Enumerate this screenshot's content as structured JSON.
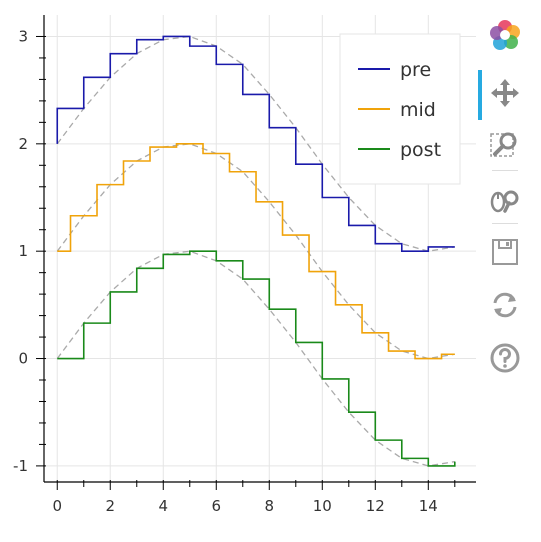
{
  "chart_data": {
    "type": "line",
    "title": "",
    "xlabel": "",
    "ylabel": "",
    "xlim": [
      -0.5,
      15.8
    ],
    "ylim": [
      -1.15,
      3.2
    ],
    "x_ticks": [
      0,
      2,
      4,
      6,
      8,
      10,
      12,
      14
    ],
    "y_ticks": [
      -1,
      0,
      1,
      2,
      3
    ],
    "grid": true,
    "legend_position": "top-right",
    "x": [
      0,
      1,
      2,
      3,
      4,
      5,
      6,
      7,
      8,
      9,
      10,
      11,
      12,
      13,
      14,
      15
    ],
    "series": [
      {
        "name": "pre",
        "offset": 2,
        "step_mode": "before",
        "color": "#1a1aaa",
        "values": [
          2.0,
          2.33,
          2.62,
          2.84,
          2.97,
          3.0,
          2.91,
          2.74,
          2.46,
          2.15,
          1.81,
          1.5,
          1.24,
          1.07,
          1.0,
          1.04
        ]
      },
      {
        "name": "mid",
        "offset": 1,
        "step_mode": "center",
        "color": "#f0a30a",
        "values": [
          1.0,
          1.33,
          1.62,
          1.84,
          1.97,
          2.0,
          1.91,
          1.74,
          1.46,
          1.15,
          0.81,
          0.5,
          0.24,
          0.07,
          0.0,
          0.04
        ]
      },
      {
        "name": "post",
        "offset": 0,
        "step_mode": "after",
        "color": "#1a8a1a",
        "values": [
          0.0,
          0.33,
          0.62,
          0.84,
          0.97,
          1.0,
          0.91,
          0.74,
          0.46,
          0.15,
          -0.19,
          -0.5,
          -0.76,
          -0.93,
          -1.0,
          -0.96
        ]
      }
    ],
    "reference_lines": {
      "style": "dashed",
      "color": "#aaaaaa",
      "description_values": "sin(x/3)*? curves through each series"
    }
  },
  "toolbar": {
    "tools": [
      {
        "name": "bokeh-logo-icon",
        "active": false
      },
      {
        "name": "pan-icon",
        "active": true
      },
      {
        "name": "box-zoom-icon",
        "active": false
      },
      {
        "name": "wheel-zoom-icon",
        "active": false
      },
      {
        "name": "save-icon",
        "active": false
      },
      {
        "name": "reset-icon",
        "active": false
      },
      {
        "name": "help-icon",
        "active": false
      }
    ],
    "accent_color": "#26aae1"
  }
}
